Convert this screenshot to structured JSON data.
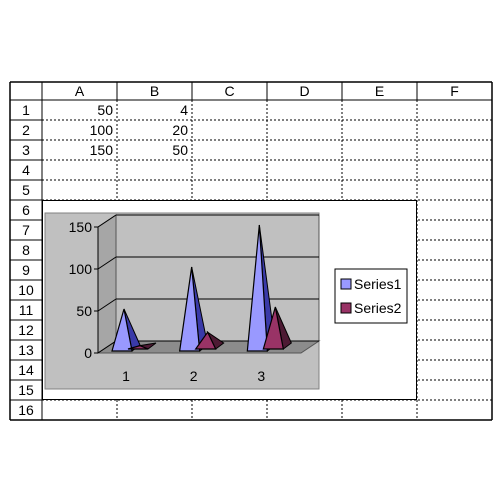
{
  "spreadsheet": {
    "columns": [
      "A",
      "B",
      "C",
      "D",
      "E",
      "F"
    ],
    "rows": [
      "1",
      "2",
      "3",
      "4",
      "5",
      "6",
      "7",
      "8",
      "9",
      "10",
      "11",
      "12",
      "13",
      "14",
      "15",
      "16"
    ],
    "cells": {
      "A1": "50",
      "B1": "4",
      "A2": "100",
      "B2": "20",
      "A3": "150",
      "B3": "50"
    }
  },
  "chart_data": {
    "type": "bar",
    "style": "3d-pyramid",
    "categories": [
      "1",
      "2",
      "3"
    ],
    "series": [
      {
        "name": "Series1",
        "values": [
          50,
          100,
          150
        ],
        "color": "#9999ff"
      },
      {
        "name": "Series2",
        "values": [
          4,
          20,
          50
        ],
        "color": "#993366"
      }
    ],
    "yticks": [
      "0",
      "50",
      "100",
      "150"
    ],
    "ylim": [
      0,
      150
    ],
    "grid": true,
    "plot_area_color": "#c0c0c0",
    "chart_area_color": "#ffffff",
    "legend": "right"
  }
}
